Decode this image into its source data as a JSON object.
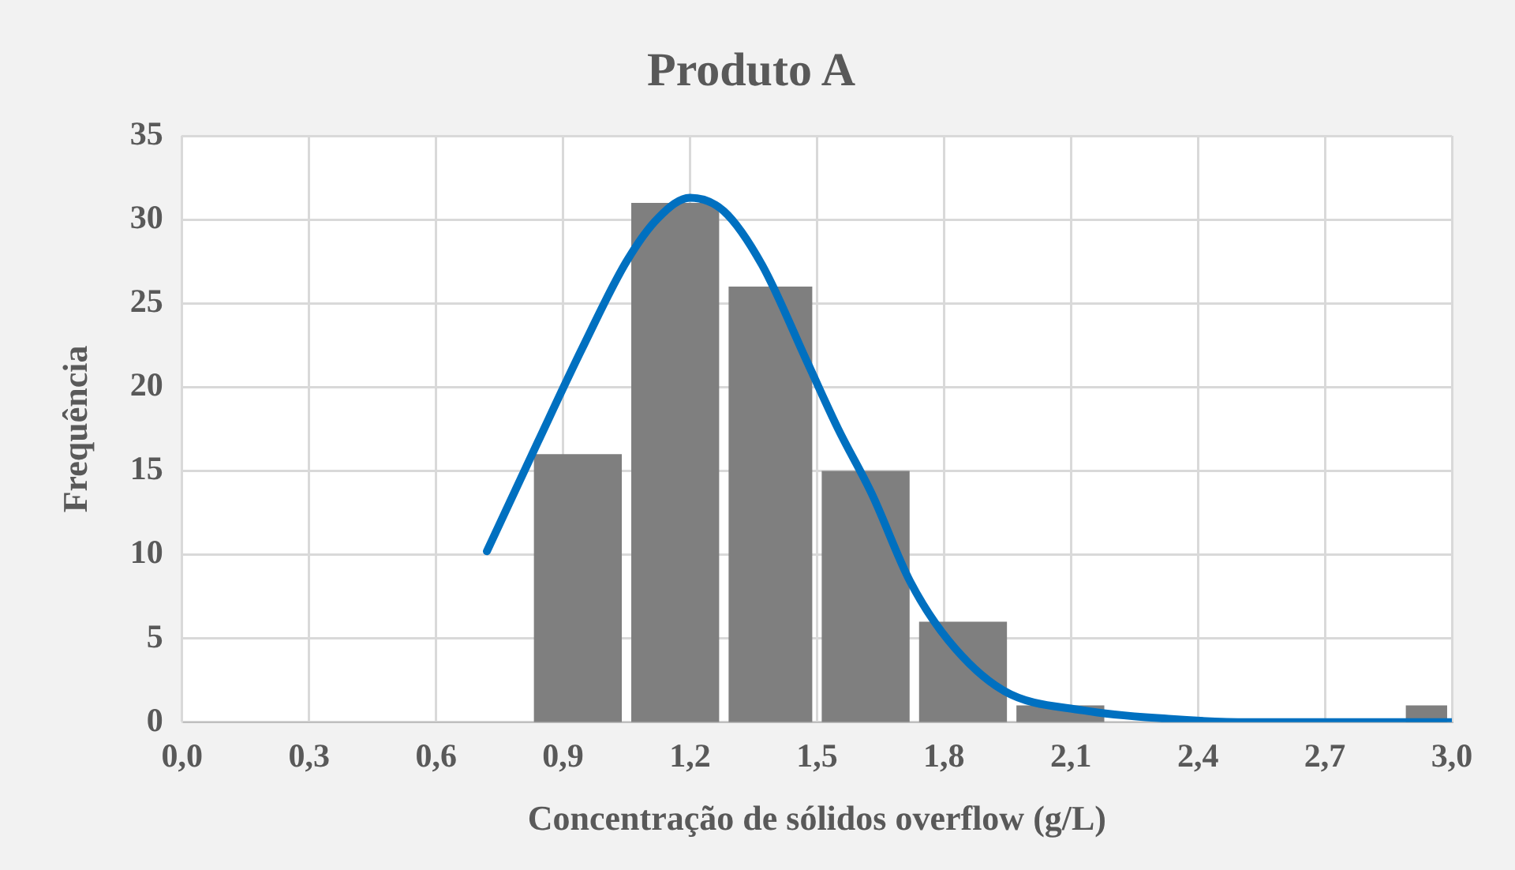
{
  "chart_data": {
    "type": "histogram",
    "title": "Produto A",
    "xlabel": "Concentração de sólidos overflow (g/L)",
    "ylabel": "Frequência",
    "bins": [
      0.82,
      1.05,
      1.28,
      1.5,
      1.73,
      1.96,
      2.19,
      2.88,
      3.0
    ],
    "values": [
      16,
      31,
      26,
      15,
      6,
      1,
      0,
      1
    ],
    "color": "#7f7f7f",
    "series": [
      {
        "type": "line",
        "color": "#0070c0",
        "x": [
          0.72,
          0.84,
          0.945,
          1.05,
          1.125,
          1.2,
          1.28,
          1.37,
          1.475,
          1.55,
          1.63,
          1.72,
          1.81,
          1.94,
          2.13,
          2.33,
          2.52,
          3.0
        ],
        "values": [
          10.2,
          16.7,
          22.3,
          27.5,
          30.1,
          31.3,
          30.5,
          27.3,
          21.6,
          17.5,
          13.6,
          8.4,
          4.9,
          1.9,
          0.7,
          0.2,
          0,
          0
        ]
      }
    ],
    "xlim": [
      0,
      3.0
    ],
    "xticks": [
      {
        "value": 0,
        "label": "0,0"
      },
      {
        "value": 0.3,
        "label": "0,3"
      },
      {
        "value": 0.6,
        "label": "0,6"
      },
      {
        "value": 0.9,
        "label": "0,9"
      },
      {
        "value": 1.2,
        "label": "1,2"
      },
      {
        "value": 1.5,
        "label": "1,5"
      },
      {
        "value": 1.8,
        "label": "1,8"
      },
      {
        "value": 2.1,
        "label": "2,1"
      },
      {
        "value": 2.4,
        "label": "2,4"
      },
      {
        "value": 2.7,
        "label": "2,7"
      },
      {
        "value": 3.0,
        "label": "3,0"
      }
    ],
    "ylim": [
      0,
      35
    ],
    "yticks": [
      0,
      5,
      10,
      15,
      20,
      25,
      30,
      35
    ],
    "grid": true,
    "legend": false,
    "marker": "none"
  }
}
